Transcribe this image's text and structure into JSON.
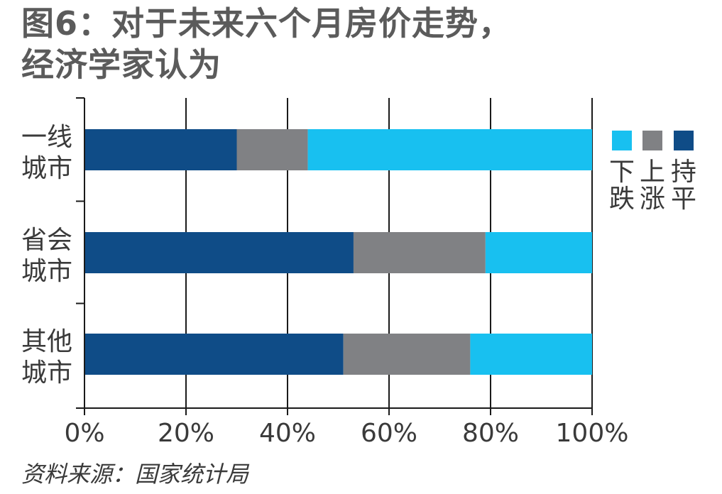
{
  "title": {
    "line1": "图6：对于未来六个月房价走势，",
    "line2": "经济学家认为"
  },
  "source": "资料来源：国家统计局",
  "colors": {
    "flat": "#0f4c87",
    "up": "#808184",
    "down": "#18c0f0",
    "grid": "#1a1a1a"
  },
  "chart_data": {
    "type": "bar",
    "orientation": "horizontal",
    "stacked": true,
    "title": "图6：对于未来六个月房价走势，经济学家认为",
    "categories": [
      "一线城市",
      "省会城市",
      "其他城市"
    ],
    "category_lines": [
      [
        "一线",
        "城市"
      ],
      [
        "省会",
        "城市"
      ],
      [
        "其他",
        "城市"
      ]
    ],
    "series": [
      {
        "name": "持平",
        "color": "#0f4c87",
        "values": [
          30,
          53,
          51
        ]
      },
      {
        "name": "上涨",
        "color": "#808184",
        "values": [
          14,
          26,
          25
        ]
      },
      {
        "name": "下跌",
        "color": "#18c0f0",
        "values": [
          56,
          21,
          24
        ]
      }
    ],
    "xlim": [
      0,
      100
    ],
    "x_ticks": [
      0,
      20,
      40,
      60,
      80,
      100
    ],
    "x_tick_labels": [
      "0%",
      "20%",
      "40%",
      "60%",
      "80%",
      "100%"
    ],
    "grid": "vertical",
    "legend": {
      "placement": "right",
      "order": [
        "下跌",
        "上涨",
        "持平"
      ],
      "label_lines": [
        [
          "下",
          "跌"
        ],
        [
          "上",
          "涨"
        ],
        [
          "持",
          "平"
        ]
      ]
    }
  }
}
